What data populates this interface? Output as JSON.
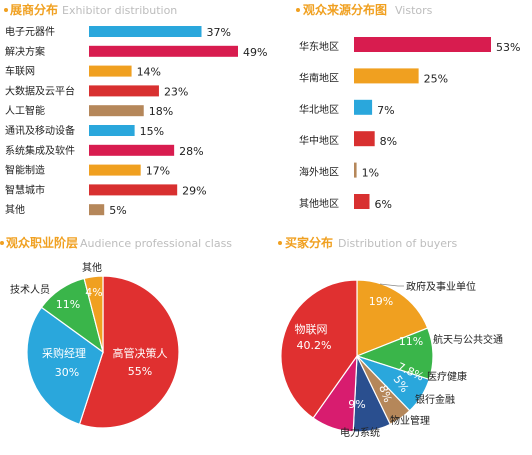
{
  "palette": {
    "blue": "#2aa7dc",
    "crimson": "#d81c4f",
    "orange": "#f0a020",
    "brown": "#b5875a",
    "red": "#e03030",
    "green": "#3ab54a",
    "title_orange": "#f0a020"
  },
  "chart_data": [
    {
      "id": "exhibitor",
      "type": "bar",
      "orientation": "horizontal",
      "title": "展商分布",
      "subtitle": "Exhibitor distribution",
      "categories": [
        "电子元器件",
        "解决方案",
        "车联网",
        "大数据及云平台",
        "人工智能",
        "通讯及移动设备",
        "系统集成及软件",
        "智能制造",
        "智慧城市",
        "其他"
      ],
      "values": [
        37,
        49,
        14,
        23,
        18,
        15,
        28,
        17,
        29,
        5
      ],
      "value_labels": [
        "37%",
        "49%",
        "14%",
        "23%",
        "18%",
        "15%",
        "28%",
        "17%",
        "29%",
        "5%"
      ],
      "colors": [
        "#2aa7dc",
        "#d81c4f",
        "#f0a020",
        "#d83030",
        "#b5875a",
        "#2aa7dc",
        "#d81c4f",
        "#f0a020",
        "#d83030",
        "#b5875a"
      ],
      "xlim": [
        0,
        50
      ]
    },
    {
      "id": "visitors",
      "type": "bar",
      "orientation": "horizontal",
      "title": "观众来源分布图",
      "subtitle": "Vistors",
      "categories": [
        "华东地区",
        "华南地区",
        "华北地区",
        "华中地区",
        "海外地区",
        "其他地区"
      ],
      "values": [
        53,
        25,
        7,
        8,
        1,
        6
      ],
      "value_labels": [
        "53%",
        "25%",
        "7%",
        "8%",
        "1%",
        "6%"
      ],
      "colors": [
        "#d81c4f",
        "#f0a020",
        "#2aa7dc",
        "#d83030",
        "#b5875a",
        "#d83030"
      ],
      "xlim": [
        0,
        55
      ]
    },
    {
      "id": "audience",
      "type": "pie",
      "title": "观众职业阶层",
      "subtitle": "Audience professional class",
      "slices": [
        {
          "name": "高管决策人",
          "value": 55,
          "label": "55%",
          "color": "#e03030"
        },
        {
          "name": "采购经理",
          "value": 30,
          "label": "30%",
          "color": "#2aa7dc"
        },
        {
          "name": "技术人员",
          "value": 11,
          "label": "11%",
          "color": "#3ab54a"
        },
        {
          "name": "其他",
          "value": 4,
          "label": "4%",
          "color": "#f0a020"
        }
      ]
    },
    {
      "id": "buyers",
      "type": "pie",
      "title": "买家分布",
      "subtitle": "Distribution of buyers",
      "slices": [
        {
          "name": "政府及事业单位",
          "value": 19,
          "label": "19%",
          "color": "#f0a020"
        },
        {
          "name": "航天与公共交通",
          "value": 11,
          "label": "11%",
          "color": "#3ab54a"
        },
        {
          "name": "医疗健康",
          "value": 7.8,
          "label": "7.8%",
          "color": "#2aa7dc"
        },
        {
          "name": "银行金融",
          "value": 5,
          "label": "5%",
          "color": "#b5875a"
        },
        {
          "name": "物业管理",
          "value": 8,
          "label": "8%",
          "color": "#2a4f8f"
        },
        {
          "name": "电力系统",
          "value": 9,
          "label": "9%",
          "color": "#d81c6f"
        },
        {
          "name": "物联网",
          "value": 40.2,
          "label": "40.2%",
          "color": "#e03030"
        }
      ]
    }
  ]
}
